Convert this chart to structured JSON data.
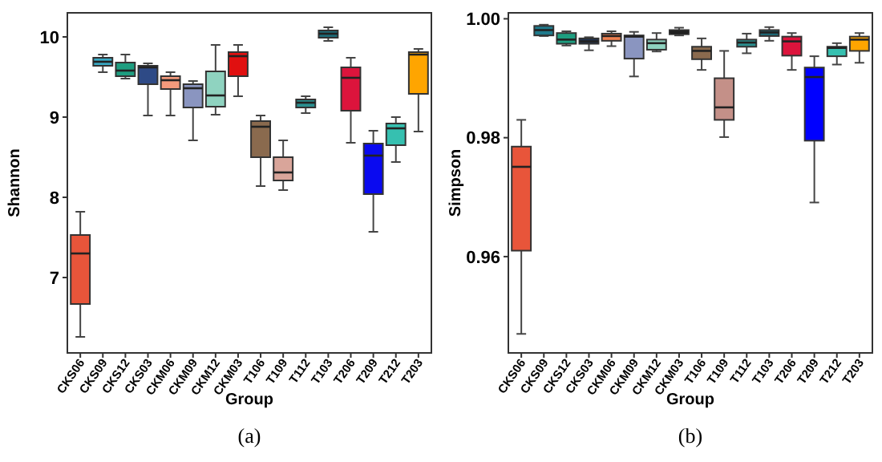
{
  "chart_data": [
    {
      "type": "box",
      "ylabel": "Shannon",
      "xlabel": "Group",
      "annotations": [
        "(a)"
      ],
      "ylim": [
        6.06,
        10.3
      ],
      "yticks": [
        7,
        8,
        9,
        10
      ],
      "categories": [
        "CKS06",
        "CKS09",
        "CKS12",
        "CKS03",
        "CKM06",
        "CKM09",
        "CKM12",
        "CKM03",
        "T106",
        "T109",
        "T112",
        "T103",
        "T206",
        "T209",
        "T212",
        "T203"
      ],
      "colors": [
        "#e8553a",
        "#39a9c4",
        "#1e9e80",
        "#2e4a86",
        "#f49a7c",
        "#8a95c0",
        "#8fd3c0",
        "#e01010",
        "#8a6a4e",
        "#d9a59a",
        "#2a8f8f",
        "#1d6b78",
        "#dc143c",
        "#0a0af0",
        "#36c0b0",
        "#ffa500"
      ],
      "boxes": [
        {
          "low": 6.26,
          "q1": 6.67,
          "median": 7.3,
          "q3": 7.53,
          "high": 7.82
        },
        {
          "low": 9.56,
          "q1": 9.64,
          "median": 9.69,
          "q3": 9.74,
          "high": 9.78
        },
        {
          "low": 9.48,
          "q1": 9.51,
          "median": 9.58,
          "q3": 9.68,
          "high": 9.78
        },
        {
          "low": 9.02,
          "q1": 9.41,
          "median": 9.62,
          "q3": 9.64,
          "high": 9.67
        },
        {
          "low": 9.02,
          "q1": 9.35,
          "median": 9.46,
          "q3": 9.51,
          "high": 9.56
        },
        {
          "low": 8.71,
          "q1": 9.12,
          "median": 9.36,
          "q3": 9.41,
          "high": 9.45
        },
        {
          "low": 9.03,
          "q1": 9.13,
          "median": 9.27,
          "q3": 9.57,
          "high": 9.9
        },
        {
          "low": 9.26,
          "q1": 9.51,
          "median": 9.76,
          "q3": 9.81,
          "high": 9.9
        },
        {
          "low": 8.14,
          "q1": 8.5,
          "median": 8.88,
          "q3": 8.95,
          "high": 9.02
        },
        {
          "low": 8.09,
          "q1": 8.21,
          "median": 8.31,
          "q3": 8.5,
          "high": 8.71
        },
        {
          "low": 9.05,
          "q1": 9.12,
          "median": 9.18,
          "q3": 9.22,
          "high": 9.26
        },
        {
          "low": 9.95,
          "q1": 9.99,
          "median": 10.04,
          "q3": 10.08,
          "high": 10.12
        },
        {
          "low": 8.68,
          "q1": 9.08,
          "median": 9.49,
          "q3": 9.62,
          "high": 9.74
        },
        {
          "low": 7.57,
          "q1": 8.04,
          "median": 8.52,
          "q3": 8.67,
          "high": 8.83
        },
        {
          "low": 8.44,
          "q1": 8.65,
          "median": 8.86,
          "q3": 8.92,
          "high": 9.0
        },
        {
          "low": 8.82,
          "q1": 9.29,
          "median": 9.78,
          "q3": 9.81,
          "high": 9.85
        }
      ]
    },
    {
      "type": "box",
      "ylabel": "Simpson",
      "xlabel": "Group",
      "annotations": [
        "(b)"
      ],
      "ylim": [
        0.9438,
        1.001
      ],
      "yticks": [
        0.96,
        0.98,
        {
          "value": 1,
          "label": "1.00"
        }
      ],
      "categories": [
        "CKS06",
        "CKS09",
        "CKS12",
        "CKS03",
        "CKM06",
        "CKM09",
        "CKM12",
        "CKM03",
        "T106",
        "T109",
        "T112",
        "T103",
        "T206",
        "T209",
        "T212",
        "T203"
      ],
      "colors": [
        "#e8553a",
        "#1f7a8c",
        "#1e9e80",
        "#1e3050",
        "#f08050",
        "#8a95c0",
        "#8fd3c0",
        "#111111",
        "#8a6a4e",
        "#c49088",
        "#2a8f8f",
        "#1d6b78",
        "#dc143c",
        "#0000ff",
        "#36c0b0",
        "#ffa500"
      ],
      "boxes": [
        {
          "low": 0.947,
          "q1": 0.961,
          "median": 0.9751,
          "q3": 0.9785,
          "high": 0.983
        },
        {
          "low": 0.9971,
          "q1": 0.9972,
          "median": 0.9981,
          "q3": 0.9988,
          "high": 0.999
        },
        {
          "low": 0.9955,
          "q1": 0.9958,
          "median": 0.9965,
          "q3": 0.9976,
          "high": 0.9979
        },
        {
          "low": 0.9947,
          "q1": 0.9958,
          "median": 0.9962,
          "q3": 0.9967,
          "high": 0.9969
        },
        {
          "low": 0.9954,
          "q1": 0.9963,
          "median": 0.9971,
          "q3": 0.9975,
          "high": 0.9979
        },
        {
          "low": 0.9903,
          "q1": 0.9933,
          "median": 0.997,
          "q3": 0.9972,
          "high": 0.9978
        },
        {
          "low": 0.9945,
          "q1": 0.9948,
          "median": 0.9959,
          "q3": 0.9965,
          "high": 0.9976
        },
        {
          "low": 0.9972,
          "q1": 0.9974,
          "median": 0.9978,
          "q3": 0.9981,
          "high": 0.9985
        },
        {
          "low": 0.9914,
          "q1": 0.9932,
          "median": 0.9946,
          "q3": 0.9953,
          "high": 0.9967
        },
        {
          "low": 0.9801,
          "q1": 0.983,
          "median": 0.9851,
          "q3": 0.99,
          "high": 0.9946
        },
        {
          "low": 0.9942,
          "q1": 0.9953,
          "median": 0.996,
          "q3": 0.9965,
          "high": 0.9975
        },
        {
          "low": 0.9963,
          "q1": 0.9971,
          "median": 0.9977,
          "q3": 0.9981,
          "high": 0.9986
        },
        {
          "low": 0.9914,
          "q1": 0.9938,
          "median": 0.9962,
          "q3": 0.997,
          "high": 0.9976
        },
        {
          "low": 0.9691,
          "q1": 0.9795,
          "median": 0.9902,
          "q3": 0.9918,
          "high": 0.9937
        },
        {
          "low": 0.9923,
          "q1": 0.9937,
          "median": 0.9951,
          "q3": 0.9953,
          "high": 0.9959
        },
        {
          "low": 0.9926,
          "q1": 0.9946,
          "median": 0.9965,
          "q3": 0.997,
          "high": 0.9976
        }
      ]
    }
  ]
}
